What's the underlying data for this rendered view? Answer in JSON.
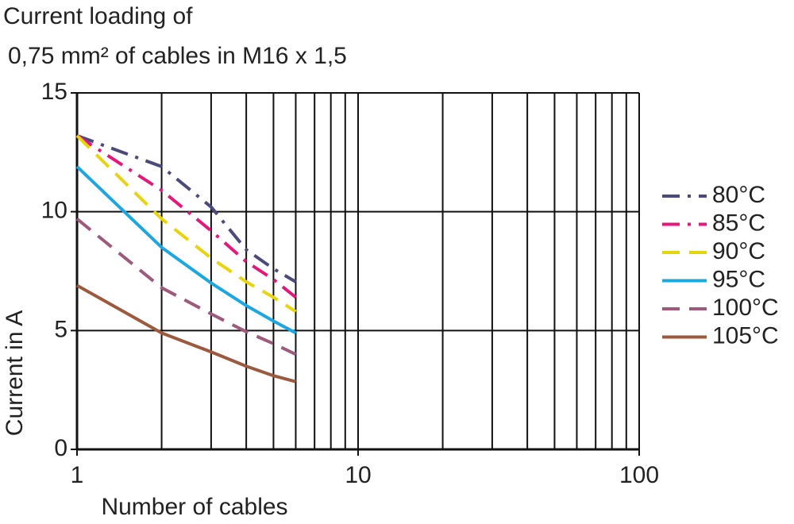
{
  "chart_data": {
    "type": "line",
    "title": [
      "Current loading of",
      "0,75 mm² of cables in M16 x 1,5"
    ],
    "xlabel": "Number of cables",
    "ylabel": "Current in A",
    "xscale": "log",
    "xlim": [
      1,
      100
    ],
    "xticks": [
      1,
      10,
      100
    ],
    "xminorticks": [
      2,
      3,
      4,
      5,
      6,
      7,
      8,
      9,
      20,
      30,
      40,
      50,
      60,
      70,
      80,
      90
    ],
    "ylim": [
      0,
      15
    ],
    "yticks": [
      0,
      5,
      10,
      15
    ],
    "grid": true,
    "legend": "right",
    "x": [
      1,
      2,
      3,
      4,
      5,
      6
    ],
    "series": [
      {
        "name": "80°C",
        "color": "#4b4a78",
        "style": "dash-dot",
        "values": [
          13.2,
          11.9,
          10.2,
          8.4,
          7.6,
          7.05
        ]
      },
      {
        "name": "85°C",
        "color": "#e0197a",
        "style": "dash-dot",
        "values": [
          13.2,
          10.9,
          9.2,
          7.9,
          7.15,
          6.4
        ]
      },
      {
        "name": "90°C",
        "color": "#e8d40e",
        "style": "dash",
        "values": [
          13.2,
          9.7,
          8.05,
          7.05,
          6.4,
          5.8
        ]
      },
      {
        "name": "95°C",
        "color": "#1ea6e0",
        "style": "solid",
        "values": [
          11.9,
          8.5,
          7.0,
          6.05,
          5.4,
          4.9
        ]
      },
      {
        "name": "100°C",
        "color": "#9c5b7c",
        "style": "dash",
        "values": [
          9.7,
          6.8,
          5.7,
          4.95,
          4.45,
          4.0
        ]
      },
      {
        "name": "105°C",
        "color": "#9b5a3e",
        "style": "solid",
        "values": [
          6.9,
          4.9,
          4.1,
          3.5,
          3.1,
          2.85
        ]
      }
    ]
  }
}
